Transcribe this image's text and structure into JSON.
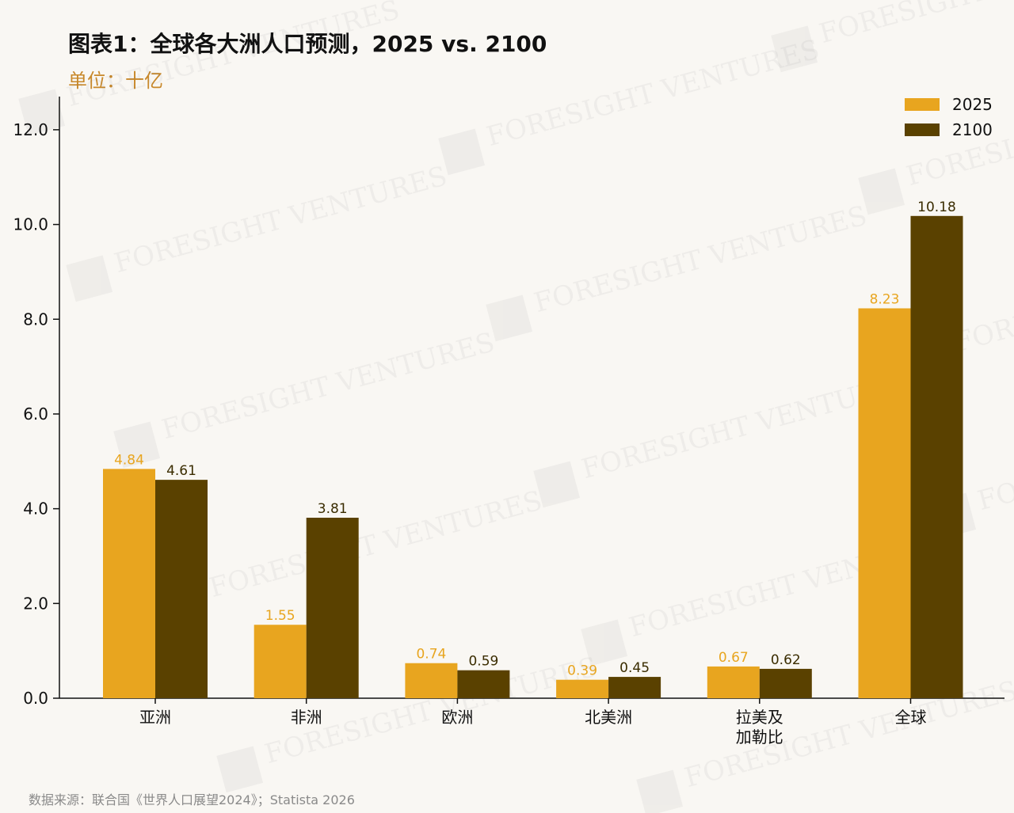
{
  "title": "图表1：全球各大洲人口预测，2025 vs. 2100",
  "subtitle": "单位：十亿",
  "source": "数据来源：联合国《世界人口展望2024》；Statista 2026",
  "watermark": "FORESIGHT VENTURES",
  "colors": {
    "s2025": "#e8a51f",
    "s2100": "#5a4100",
    "label2025": "#e8a51f",
    "label2100": "#3a2c00",
    "axis": "#111111",
    "background": "#f9f7f3"
  },
  "chart_data": {
    "type": "bar",
    "categories": [
      "亚洲",
      "非洲",
      "欧洲",
      "北美洲",
      "拉美及\n加勒比",
      "全球"
    ],
    "series": [
      {
        "name": "2025",
        "values": [
          4.84,
          1.55,
          0.74,
          0.39,
          0.67,
          8.23
        ]
      },
      {
        "name": "2100",
        "values": [
          4.61,
          3.81,
          0.59,
          0.45,
          0.62,
          10.18
        ]
      }
    ],
    "value_labels": [
      [
        "4.84",
        "1.55",
        "0.74",
        "0.39",
        "0.67",
        "8.23"
      ],
      [
        "4.61",
        "3.81",
        "0.59",
        "0.45",
        "0.62",
        "10.18"
      ]
    ],
    "ylim": [
      0,
      12.7
    ],
    "yticks": [
      0,
      2,
      4,
      6,
      8,
      10,
      12
    ],
    "ytick_labels": [
      "0.0",
      "2.0",
      "4.0",
      "6.0",
      "8.0",
      "10.0",
      "12.0"
    ],
    "legend_position": "top-right",
    "grid": false
  }
}
